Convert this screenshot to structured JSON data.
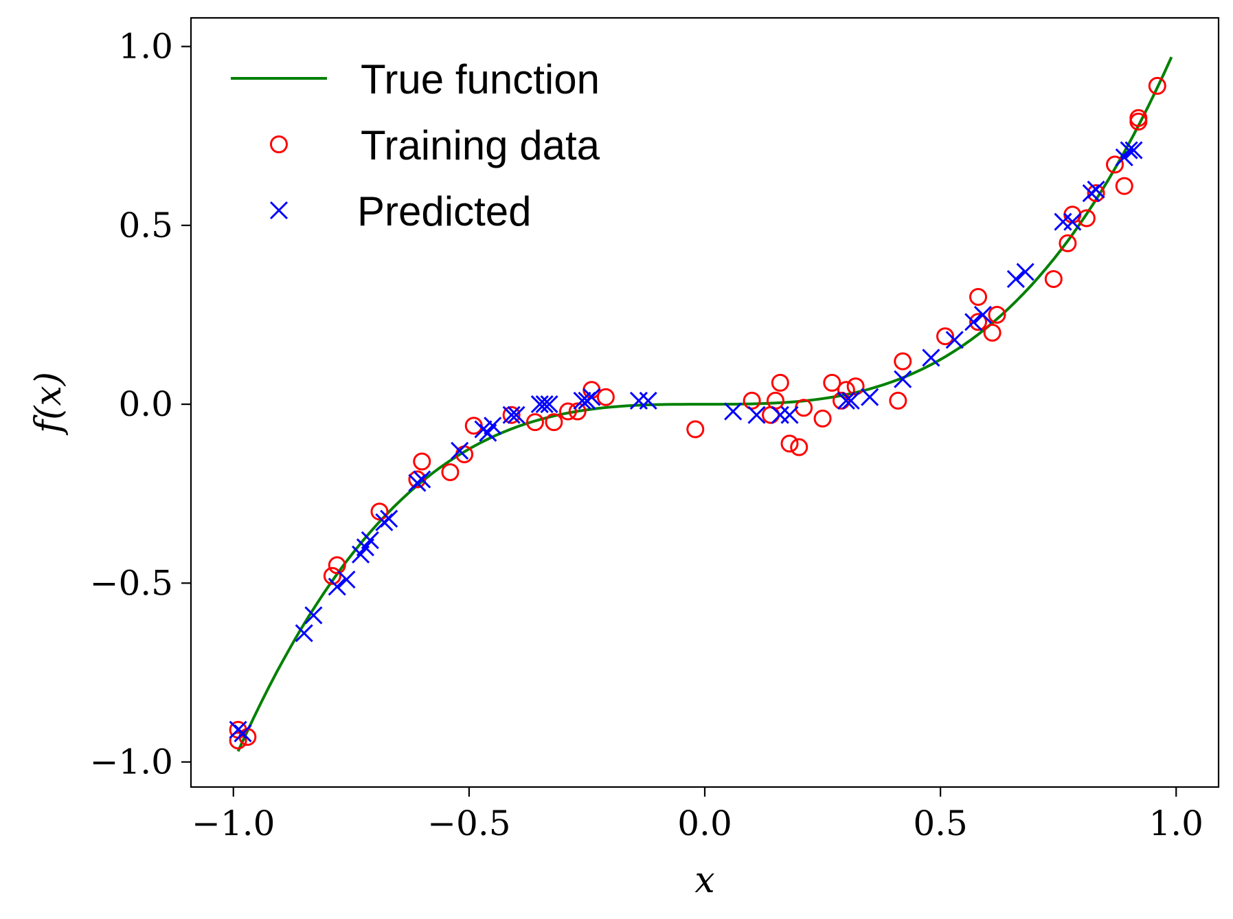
{
  "chart_data": {
    "type": "line",
    "xlabel": "x",
    "ylabel": "f(x)",
    "xlim": [
      -1.09,
      1.09
    ],
    "ylim": [
      -1.07,
      1.08
    ],
    "x_ticks": [
      -1.0,
      -0.5,
      0.0,
      0.5,
      1.0
    ],
    "x_tick_labels": [
      "−1.0",
      "−0.5",
      "0.0",
      "0.5",
      "1.0"
    ],
    "y_ticks": [
      -1.0,
      -0.5,
      0.0,
      0.5,
      1.0
    ],
    "y_tick_labels": [
      "−1.0",
      "−0.5",
      "0.0",
      "0.5",
      "1.0"
    ],
    "grid": false,
    "legend_position": "top-left",
    "series": [
      {
        "name": "True function",
        "kind": "line",
        "color": "#008000",
        "function": "x^3",
        "x_range": [
          -0.99,
          0.99
        ],
        "samples": 120
      },
      {
        "name": "Training data",
        "kind": "scatter",
        "marker": "circle",
        "color": "#ff0000",
        "points": [
          [
            -0.99,
            -0.94
          ],
          [
            -0.99,
            -0.91
          ],
          [
            -0.97,
            -0.93
          ],
          [
            -0.79,
            -0.48
          ],
          [
            -0.78,
            -0.45
          ],
          [
            -0.69,
            -0.3
          ],
          [
            -0.61,
            -0.21
          ],
          [
            -0.6,
            -0.16
          ],
          [
            -0.54,
            -0.19
          ],
          [
            -0.51,
            -0.14
          ],
          [
            -0.49,
            -0.06
          ],
          [
            -0.41,
            -0.03
          ],
          [
            -0.36,
            -0.05
          ],
          [
            -0.32,
            -0.05
          ],
          [
            -0.29,
            -0.02
          ],
          [
            -0.27,
            -0.02
          ],
          [
            -0.24,
            0.04
          ],
          [
            -0.21,
            0.02
          ],
          [
            -0.02,
            -0.07
          ],
          [
            0.1,
            0.01
          ],
          [
            0.14,
            -0.03
          ],
          [
            0.15,
            0.01
          ],
          [
            0.16,
            0.06
          ],
          [
            0.18,
            -0.11
          ],
          [
            0.2,
            -0.12
          ],
          [
            0.21,
            -0.01
          ],
          [
            0.25,
            -0.04
          ],
          [
            0.27,
            0.06
          ],
          [
            0.29,
            0.01
          ],
          [
            0.3,
            0.04
          ],
          [
            0.32,
            0.05
          ],
          [
            0.41,
            0.01
          ],
          [
            0.42,
            0.12
          ],
          [
            0.51,
            0.19
          ],
          [
            0.58,
            0.3
          ],
          [
            0.58,
            0.23
          ],
          [
            0.61,
            0.2
          ],
          [
            0.62,
            0.25
          ],
          [
            0.74,
            0.35
          ],
          [
            0.77,
            0.45
          ],
          [
            0.78,
            0.53
          ],
          [
            0.81,
            0.52
          ],
          [
            0.83,
            0.59
          ],
          [
            0.87,
            0.67
          ],
          [
            0.89,
            0.61
          ],
          [
            0.92,
            0.8
          ],
          [
            0.92,
            0.79
          ],
          [
            0.96,
            0.89
          ]
        ]
      },
      {
        "name": "Predicted",
        "kind": "scatter",
        "marker": "x",
        "color": "#0000ff",
        "points": [
          [
            -0.99,
            -0.91
          ],
          [
            -0.98,
            -0.92
          ],
          [
            -0.85,
            -0.64
          ],
          [
            -0.83,
            -0.59
          ],
          [
            -0.78,
            -0.51
          ],
          [
            -0.76,
            -0.49
          ],
          [
            -0.73,
            -0.42
          ],
          [
            -0.72,
            -0.4
          ],
          [
            -0.71,
            -0.38
          ],
          [
            -0.68,
            -0.33
          ],
          [
            -0.67,
            -0.32
          ],
          [
            -0.61,
            -0.22
          ],
          [
            -0.6,
            -0.21
          ],
          [
            -0.52,
            -0.13
          ],
          [
            -0.47,
            -0.07
          ],
          [
            -0.46,
            -0.08
          ],
          [
            -0.45,
            -0.06
          ],
          [
            -0.41,
            -0.03
          ],
          [
            -0.4,
            -0.03
          ],
          [
            -0.35,
            0.0
          ],
          [
            -0.34,
            0.0
          ],
          [
            -0.33,
            0.0
          ],
          [
            -0.26,
            0.01
          ],
          [
            -0.25,
            0.01
          ],
          [
            -0.24,
            0.02
          ],
          [
            -0.14,
            0.01
          ],
          [
            -0.12,
            0.01
          ],
          [
            0.06,
            -0.02
          ],
          [
            0.11,
            -0.03
          ],
          [
            0.16,
            -0.03
          ],
          [
            0.18,
            -0.03
          ],
          [
            0.3,
            0.01
          ],
          [
            0.31,
            0.01
          ],
          [
            0.35,
            0.02
          ],
          [
            0.42,
            0.07
          ],
          [
            0.48,
            0.13
          ],
          [
            0.53,
            0.18
          ],
          [
            0.57,
            0.23
          ],
          [
            0.59,
            0.25
          ],
          [
            0.66,
            0.35
          ],
          [
            0.68,
            0.37
          ],
          [
            0.76,
            0.51
          ],
          [
            0.78,
            0.51
          ],
          [
            0.82,
            0.59
          ],
          [
            0.83,
            0.6
          ],
          [
            0.89,
            0.69
          ],
          [
            0.9,
            0.71
          ],
          [
            0.91,
            0.71
          ]
        ]
      }
    ]
  }
}
